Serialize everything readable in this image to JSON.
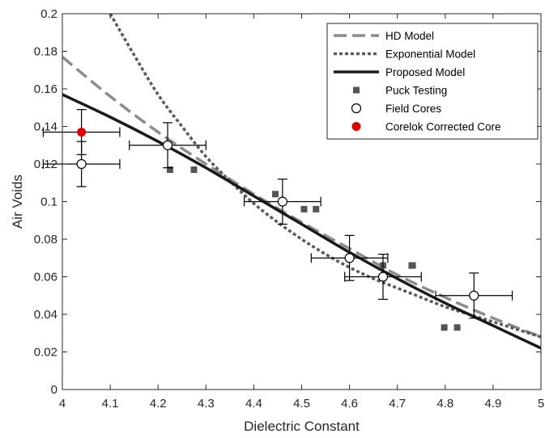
{
  "chart_data": {
    "type": "scatter",
    "xlabel": "Dielectric Constant",
    "ylabel": "Air Voids",
    "xlim": [
      4,
      5
    ],
    "ylim": [
      0,
      0.2
    ],
    "xticks": [
      "4",
      "4.1",
      "4.2",
      "4.3",
      "4.4",
      "4.5",
      "4.6",
      "4.7",
      "4.8",
      "4.9",
      "5"
    ],
    "yticks": [
      "0",
      "0.02",
      "0.04",
      "0.06",
      "0.08",
      "0.1",
      "0.12",
      "0.14",
      "0.16",
      "0.18",
      "0.2"
    ],
    "grid": false,
    "legend_position": "top-right",
    "colors": {
      "hd": "#8c8c8c",
      "exp": "#5a5a5a",
      "proposed": "#1a1a1a",
      "puck": "#555555",
      "field": "#000000",
      "corelok": "#e00000"
    },
    "series": [
      {
        "name": "HD Model",
        "kind": "line",
        "style": "dashed",
        "x": [
          4.0,
          4.1,
          4.2,
          4.3,
          4.4,
          4.5,
          4.6,
          4.7,
          4.8,
          4.9,
          5.0
        ],
        "y": [
          0.177,
          0.156,
          0.137,
          0.12,
          0.104,
          0.089,
          0.075,
          0.061,
          0.049,
          0.038,
          0.028
        ]
      },
      {
        "name": "Exponential Model",
        "kind": "line",
        "style": "dotted",
        "x": [
          4.1,
          4.15,
          4.2,
          4.25,
          4.3,
          4.35,
          4.4,
          4.45,
          4.5,
          4.55,
          4.6,
          4.65,
          4.7,
          4.75,
          4.8,
          4.85,
          4.9,
          4.95,
          5.0
        ],
        "y": [
          0.2,
          0.178,
          0.157,
          0.14,
          0.124,
          0.111,
          0.099,
          0.089,
          0.08,
          0.072,
          0.065,
          0.059,
          0.054,
          0.049,
          0.044,
          0.04,
          0.036,
          0.032,
          0.028
        ]
      },
      {
        "name": "Proposed Model",
        "kind": "line",
        "style": "solid",
        "x": [
          4.0,
          4.1,
          4.2,
          4.3,
          4.4,
          4.5,
          4.6,
          4.7,
          4.8,
          4.9,
          5.0
        ],
        "y": [
          0.157,
          0.145,
          0.132,
          0.118,
          0.103,
          0.088,
          0.073,
          0.059,
          0.046,
          0.034,
          0.022
        ]
      },
      {
        "name": "Puck Testing",
        "kind": "marker",
        "marker": "square",
        "x": [
          4.225,
          4.275,
          4.445,
          4.505,
          4.53,
          4.67,
          4.73,
          4.732,
          4.798,
          4.825
        ],
        "y": [
          0.117,
          0.117,
          0.104,
          0.096,
          0.096,
          0.066,
          0.066,
          0.066,
          0.033,
          0.033
        ]
      },
      {
        "name": "Field Cores",
        "kind": "marker",
        "marker": "open-circle",
        "x": [
          4.04,
          4.22,
          4.46,
          4.6,
          4.67,
          4.86
        ],
        "y": [
          0.12,
          0.13,
          0.1,
          0.07,
          0.06,
          0.05
        ],
        "xerr": [
          0.08,
          0.08,
          0.08,
          0.08,
          0.08,
          0.08
        ],
        "yerr": [
          0.012,
          0.012,
          0.012,
          0.012,
          0.012,
          0.012
        ]
      },
      {
        "name": "Corelok Corrected Core",
        "kind": "marker",
        "marker": "filled-circle",
        "x": [
          4.04
        ],
        "y": [
          0.137
        ],
        "xerr": [
          0.08
        ],
        "yerr": [
          0.012
        ]
      }
    ]
  }
}
